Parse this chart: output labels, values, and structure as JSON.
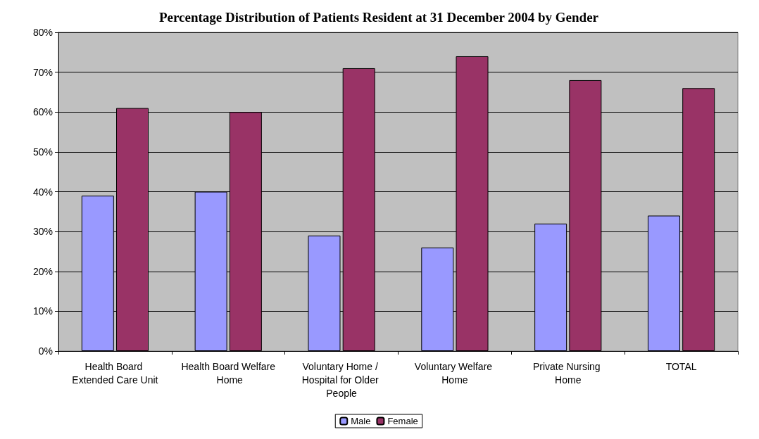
{
  "chart_data": {
    "type": "bar",
    "title": "Percentage Distribution of Patients Resident at 31 December 2004 by Gender",
    "categories": [
      "Health Board Extended Care Unit",
      "Health Board Welfare Home",
      "Voluntary Home / Hospital for Older People",
      "Voluntary Welfare Home",
      "Private Nursing Home",
      "TOTAL"
    ],
    "series": [
      {
        "name": "Male",
        "color": "#9999ff",
        "values": [
          39,
          40,
          29,
          26,
          32,
          34
        ]
      },
      {
        "name": "Female",
        "color": "#993366",
        "values": [
          61,
          60,
          71,
          74,
          68,
          66
        ]
      }
    ],
    "ylim": [
      0,
      80
    ],
    "yticks": [
      {
        "value": 0,
        "label": "0%"
      },
      {
        "value": 10,
        "label": "10%"
      },
      {
        "value": 20,
        "label": "20%"
      },
      {
        "value": 30,
        "label": "30%"
      },
      {
        "value": 40,
        "label": "40%"
      },
      {
        "value": 50,
        "label": "50%"
      },
      {
        "value": 60,
        "label": "60%"
      },
      {
        "value": 70,
        "label": "70%"
      },
      {
        "value": 80,
        "label": "80%"
      }
    ],
    "grid": "y",
    "legend": "bottom"
  }
}
